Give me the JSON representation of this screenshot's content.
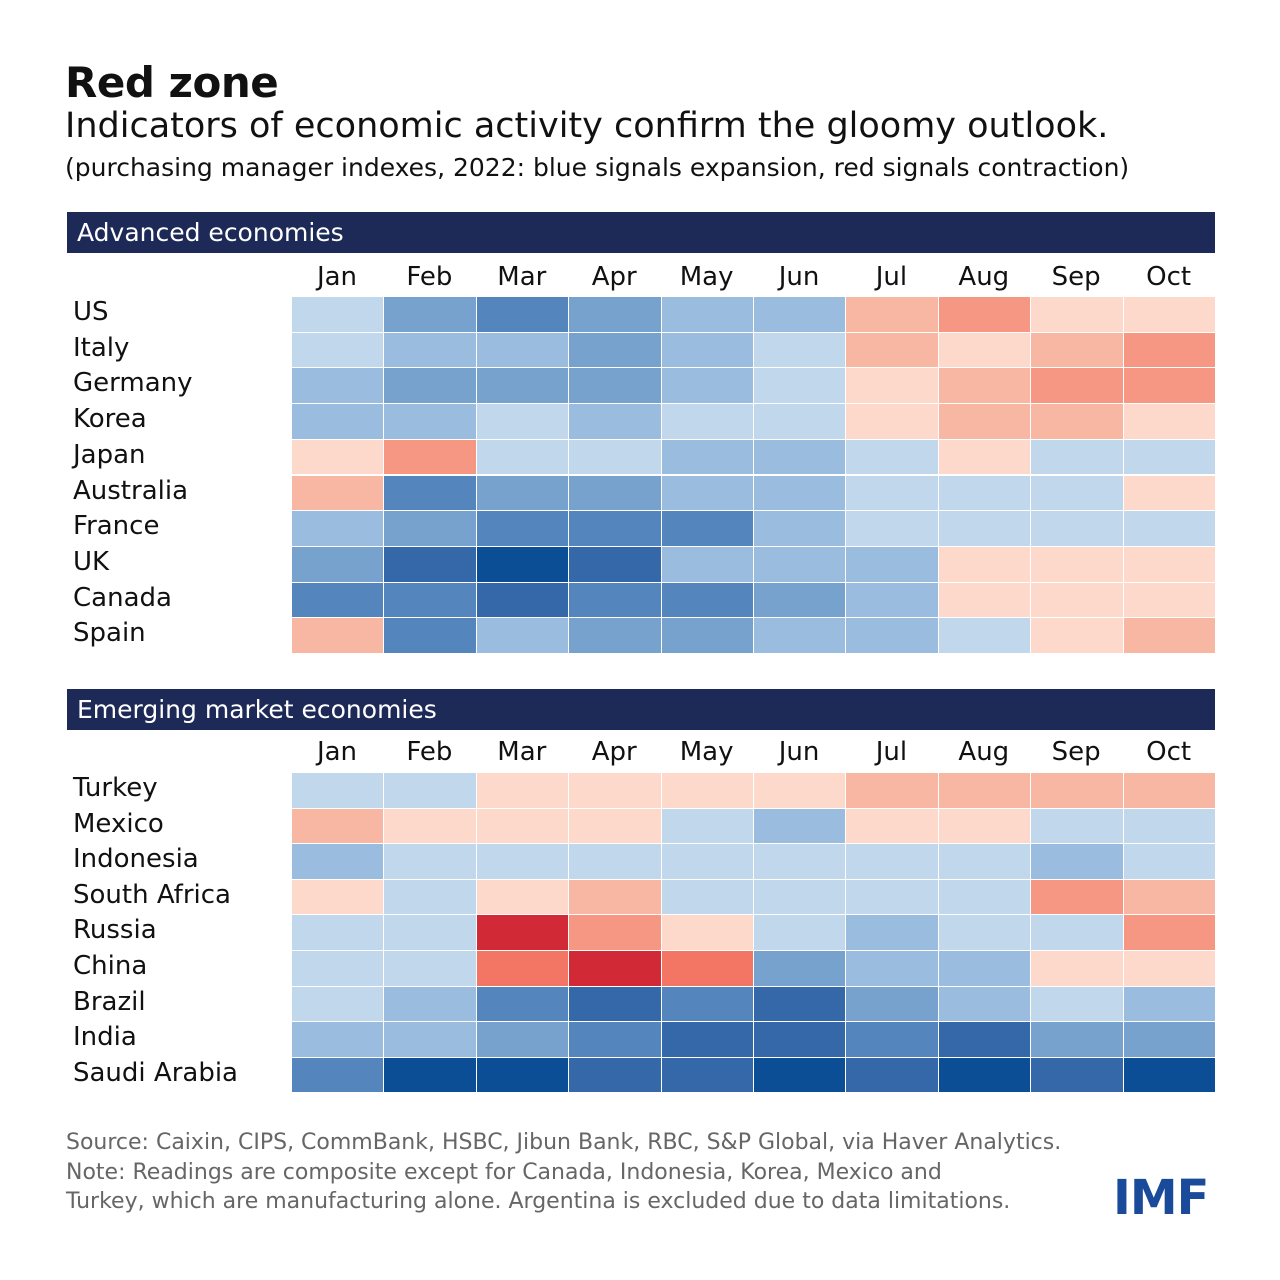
{
  "title": "Red zone",
  "subtitle": "Indicators of economic activity confirm the gloomy outlook.",
  "note": "(purchasing manager indexes, 2022: blue signals expansion, red signals contraction)",
  "footer": {
    "source": "Source: Caixin, CIPS, CommBank, HSBC, Jibun Bank, RBC, S&P Global, via Haver Analytics.",
    "note1": "Note: Readings are composite except for Canada, Indonesia, Korea, Mexico and",
    "note2": "Turkey, which are manufacturing alone. Argentina is excluded due to data limitations.",
    "logo": "IMF"
  },
  "colors": {
    "blue": [
      "#c0d7ec",
      "#9abcde",
      "#77a2cd",
      "#5585bd",
      "#3568a9",
      "#0c4e96"
    ],
    "red": [
      "#fdd9cb",
      "#f8b7a3",
      "#f59782",
      "#f37563",
      "#d22937"
    ]
  },
  "chart_data": [
    {
      "type": "heatmap",
      "title": "Advanced economies",
      "scale_note": "positive levels = blue (expansion, 1-6), negative levels = red (contraction, -1 to -5)",
      "columns": [
        "Jan",
        "Feb",
        "Mar",
        "Apr",
        "May",
        "Jun",
        "Jul",
        "Aug",
        "Sep",
        "Oct"
      ],
      "rows": [
        "US",
        "Italy",
        "Germany",
        "Korea",
        "Japan",
        "Australia",
        "France",
        "UK",
        "Canada",
        "Spain"
      ],
      "values": [
        [
          1,
          3,
          4,
          3,
          2,
          2,
          -2,
          -3,
          -1,
          -1
        ],
        [
          1,
          2,
          2,
          3,
          2,
          1,
          -2,
          -1,
          -2,
          -3
        ],
        [
          2,
          3,
          3,
          3,
          2,
          1,
          -1,
          -2,
          -3,
          -3
        ],
        [
          2,
          2,
          1,
          2,
          1,
          1,
          -1,
          -2,
          -2,
          -1
        ],
        [
          -1,
          -3,
          1,
          1,
          2,
          2,
          1,
          -1,
          1,
          1
        ],
        [
          -2,
          4,
          3,
          3,
          2,
          2,
          1,
          1,
          1,
          -1
        ],
        [
          2,
          3,
          4,
          4,
          4,
          2,
          1,
          1,
          1,
          1
        ],
        [
          3,
          5,
          6,
          5,
          2,
          2,
          2,
          -1,
          -1,
          -1
        ],
        [
          4,
          4,
          5,
          4,
          4,
          3,
          2,
          -1,
          -1,
          -1
        ],
        [
          -2,
          4,
          2,
          3,
          3,
          2,
          2,
          1,
          -1,
          -2
        ]
      ]
    },
    {
      "type": "heatmap",
      "title": "Emerging market economies",
      "columns": [
        "Jan",
        "Feb",
        "Mar",
        "Apr",
        "May",
        "Jun",
        "Jul",
        "Aug",
        "Sep",
        "Oct"
      ],
      "rows": [
        "Turkey",
        "Mexico",
        "Indonesia",
        "South Africa",
        "Russia",
        "China",
        "Brazil",
        "India",
        "Saudi Arabia"
      ],
      "values": [
        [
          1,
          1,
          -1,
          -1,
          -1,
          -1,
          -2,
          -2,
          -2,
          -2
        ],
        [
          -2,
          -1,
          -1,
          -1,
          1,
          2,
          -1,
          -1,
          1,
          1
        ],
        [
          2,
          1,
          1,
          1,
          1,
          1,
          1,
          1,
          2,
          1
        ],
        [
          -1,
          1,
          -1,
          -2,
          1,
          1,
          1,
          1,
          -3,
          -2
        ],
        [
          1,
          1,
          -5,
          -3,
          -1,
          1,
          2,
          1,
          1,
          -3
        ],
        [
          1,
          1,
          -4,
          -5,
          -4,
          3,
          2,
          2,
          -1,
          -1
        ],
        [
          1,
          2,
          4,
          5,
          4,
          5,
          3,
          2,
          1,
          2
        ],
        [
          2,
          2,
          3,
          4,
          5,
          5,
          4,
          5,
          3,
          3
        ],
        [
          4,
          6,
          6,
          5,
          5,
          6,
          5,
          6,
          5,
          6
        ]
      ]
    }
  ]
}
